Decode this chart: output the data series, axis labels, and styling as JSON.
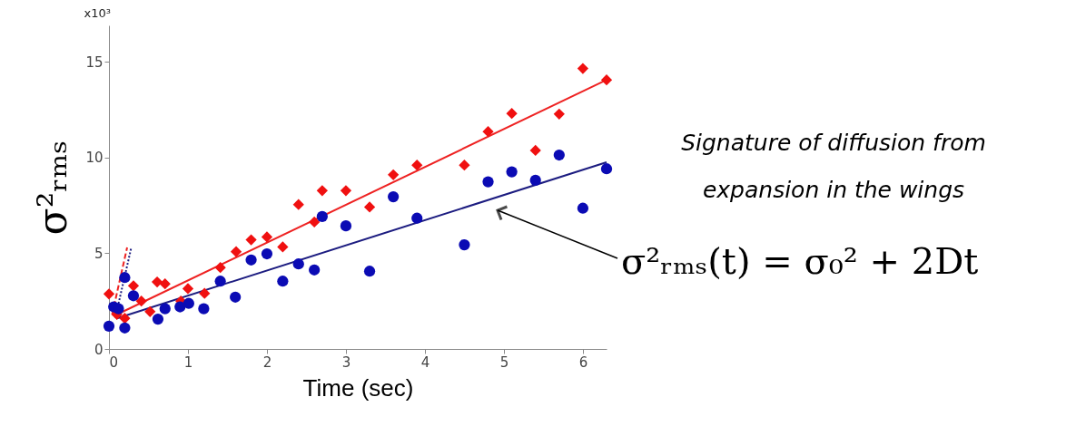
{
  "chart_data": {
    "type": "scatter",
    "xlabel": "Time (sec)",
    "ylabel": "σ²ᵣₘₛ",
    "xlim": [
      0,
      6.3
    ],
    "xticks": [
      0,
      1,
      2,
      3,
      4,
      5,
      6
    ],
    "ylim": [
      0,
      16.9
    ],
    "yticks": [
      0,
      5,
      10,
      15
    ],
    "grid": false,
    "annotations": [
      "x10³",
      "Signature of diffusion from\nexpansion in the wings",
      "σ²ᵣₘₛ(t) = σ₀² + 2Dt"
    ],
    "series": [
      {
        "type": "line",
        "color": "#ee2222",
        "line_style": "solid",
        "marker": "none",
        "x": [
          0.1,
          6.3
        ],
        "values": [
          1.8,
          14.05
        ]
      },
      {
        "type": "line",
        "color": "#1c1c80",
        "line_style": "solid",
        "marker": "none",
        "x": [
          0.1,
          6.3
        ],
        "values": [
          1.6,
          9.75
        ]
      },
      {
        "type": "line",
        "color": "#ee2222",
        "line_style": "dashed",
        "marker": "none",
        "x": [
          0.04,
          0.23
        ],
        "values": [
          1.8,
          5.3
        ]
      },
      {
        "type": "line",
        "color": "#1c1c80",
        "line_style": "dotted",
        "marker": "none",
        "x": [
          0.08,
          0.28
        ],
        "values": [
          1.63,
          5.25
        ]
      },
      {
        "color": "#f01010",
        "marker": "diamond",
        "x": [
          0,
          0.1,
          0.2,
          0.31,
          0.41,
          0.52,
          0.61,
          0.71,
          0.91,
          1.0,
          1.21,
          1.41,
          1.61,
          1.8,
          2.0,
          2.2,
          2.4,
          2.6,
          2.7,
          3.0,
          3.3,
          3.6,
          3.9,
          4.5,
          4.8,
          5.1,
          5.4,
          5.7,
          6.0,
          6.3
        ],
        "values": [
          2.87,
          1.8,
          1.6,
          3.3,
          2.5,
          1.95,
          3.5,
          3.4,
          2.5,
          3.15,
          2.9,
          4.25,
          5.08,
          5.7,
          5.85,
          5.33,
          7.54,
          6.63,
          8.27,
          8.27,
          7.41,
          9.1,
          9.6,
          9.6,
          11.35,
          12.3,
          10.37,
          12.27,
          14.65,
          14.05
        ]
      },
      {
        "color": "#0b0bb4",
        "marker": "circle",
        "x": [
          0,
          0.06,
          0.12,
          0.2,
          0.2,
          0.31,
          0.62,
          0.71,
          0.9,
          1.01,
          1.2,
          1.41,
          1.6,
          1.8,
          2.0,
          2.2,
          2.4,
          2.6,
          2.7,
          3.0,
          3.3,
          3.6,
          3.9,
          4.5,
          4.8,
          5.1,
          5.4,
          5.7,
          6.0,
          6.3
        ],
        "values": [
          1.19,
          2.2,
          2.1,
          3.73,
          1.1,
          2.78,
          1.56,
          2.1,
          2.2,
          2.38,
          2.1,
          3.54,
          2.71,
          4.65,
          4.97,
          3.54,
          4.44,
          4.13,
          6.92,
          6.43,
          4.06,
          7.95,
          6.83,
          5.44,
          8.73,
          9.25,
          8.81,
          10.13,
          7.35,
          9.41
        ]
      }
    ]
  }
}
